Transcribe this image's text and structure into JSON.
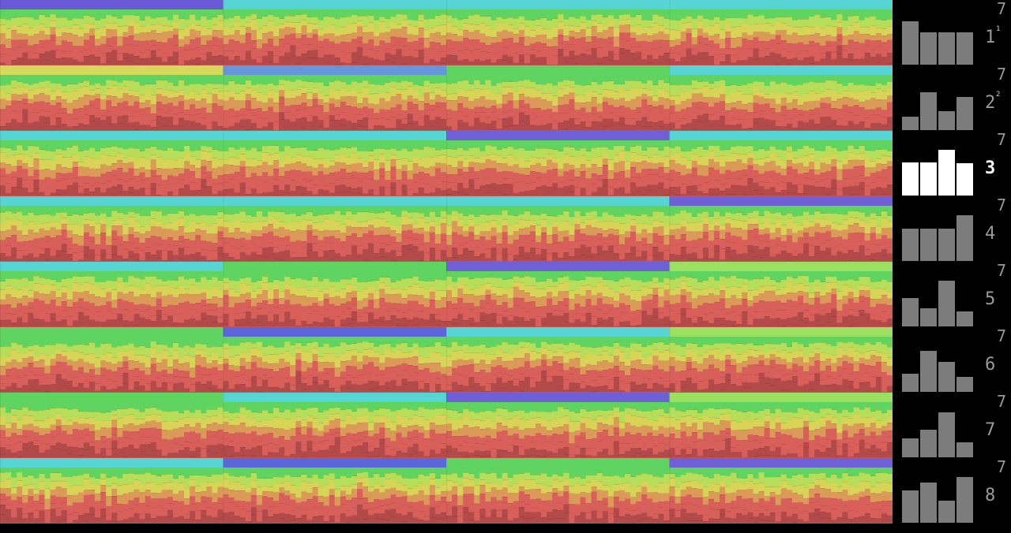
{
  "panels": [
    {
      "top_value": "7",
      "label": "1",
      "sup": "1",
      "bars": [
        0.95,
        0.7,
        0.7,
        0.7
      ],
      "active": false
    },
    {
      "top_value": "7",
      "label": "2",
      "sup": "2",
      "bars": [
        0.3,
        0.82,
        0.42,
        0.72
      ],
      "active": false
    },
    {
      "top_value": "7",
      "label": "3",
      "sup": "",
      "bars": [
        0.72,
        0.72,
        1.0,
        0.7
      ],
      "active": true
    },
    {
      "top_value": "7",
      "label": "4",
      "sup": "",
      "bars": [
        0.7,
        0.7,
        0.7,
        1.0
      ],
      "active": false
    },
    {
      "top_value": "7",
      "label": "5",
      "sup": "",
      "bars": [
        0.62,
        0.4,
        1.0,
        0.32
      ],
      "active": false
    },
    {
      "top_value": "7",
      "label": "6",
      "sup": "",
      "bars": [
        0.4,
        0.9,
        0.65,
        0.32
      ],
      "active": false
    },
    {
      "top_value": "7",
      "label": "7",
      "sup": "",
      "bars": [
        0.42,
        0.6,
        0.98,
        0.33
      ],
      "active": false
    },
    {
      "top_value": "7",
      "label": "8",
      "sup": "",
      "bars": [
        0.7,
        0.88,
        0.48,
        1.0
      ],
      "active": false
    }
  ],
  "heatmap": {
    "rows": 8,
    "blocks_per_row": 4,
    "top_band_colors": [
      [
        "#6a59d6",
        "#57d4d4",
        "#57d4d4",
        "#57d4d4"
      ],
      [
        "#d7d95a",
        "#6596dc",
        "#60d460",
        "#57d4d4"
      ],
      [
        "#57d4d4",
        "#57d4d4",
        "#7060d8",
        "#57d4d4"
      ],
      [
        "#57d4d4",
        "#57d4d4",
        "#57d4d4",
        "#7060d8"
      ],
      [
        "#57d4d4",
        "#60d460",
        "#7060d8",
        "#9be060"
      ],
      [
        "#60d460",
        "#5a66da",
        "#57d4d4",
        "#9be060"
      ],
      [
        "#60d460",
        "#57d4d4",
        "#7060d8",
        "#9be060"
      ],
      [
        "#57d4d4",
        "#5a66da",
        "#60d460",
        "#7060d8"
      ]
    ],
    "palette": {
      "cyan": "#57d4d4",
      "green": "#60d460",
      "lime": "#b6de5a",
      "yellow": "#d8d458",
      "orange": "#dc9a58",
      "red": "#d9605a",
      "deep_red": "#b24a4a"
    }
  }
}
